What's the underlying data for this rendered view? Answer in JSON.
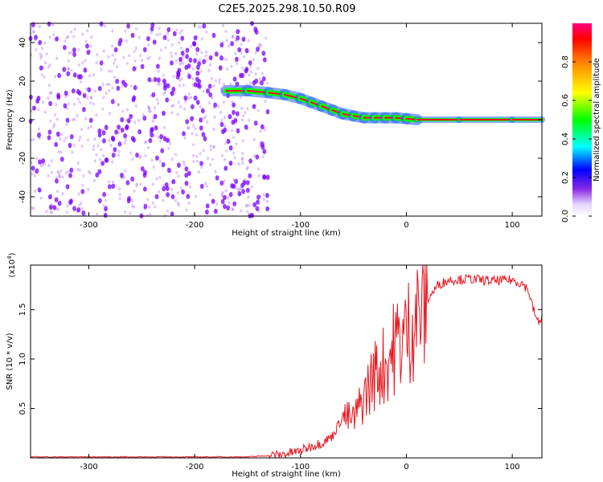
{
  "title": "C2E5.2025.298.10.50.R09",
  "colors": {
    "scatter": "#7a00ff",
    "ridge_band": "#00ff00",
    "ridge_core": "#ff0033",
    "snr_line": "#e8141c"
  },
  "chart_data": [
    {
      "type": "scatter",
      "name": "spectrogram",
      "xlabel": "Height of straight line (km)",
      "ylabel": "Frequency (Hz)",
      "xlim": [
        -355,
        128
      ],
      "ylim": [
        -50,
        50
      ],
      "xticks": [
        "-300",
        "-200",
        "-100",
        "0",
        "100"
      ],
      "yticks": [
        "-40",
        "-20",
        "0",
        "20",
        "40"
      ],
      "colorbar": {
        "label": "Normalized spectral amplitude",
        "ticks": [
          "0.0",
          "0.2",
          "0.4",
          "0.6",
          "0.8"
        ],
        "range": [
          0,
          1
        ]
      },
      "ridge": {
        "x": [
          -170,
          -150,
          -130,
          -115,
          -100,
          -90,
          -80,
          -70,
          -60,
          -50,
          -40,
          -30,
          -20,
          -10,
          0,
          10,
          50,
          100,
          128
        ],
        "y": [
          15,
          15,
          14,
          13,
          11,
          9,
          7,
          5,
          3,
          2,
          1,
          1,
          1,
          1,
          0.5,
          0,
          0,
          0,
          0
        ]
      },
      "noise_region_x": [
        -355,
        -130
      ],
      "grid": false
    },
    {
      "type": "line",
      "name": "snr",
      "xlabel": "Height of straight line (km)",
      "ylabel": "SNR (10 * v/v)",
      "scale_label": "(x10",
      "scale_exp": "4",
      "xlim": [
        -355,
        128
      ],
      "ylim": [
        0,
        1.95
      ],
      "xticks": [
        "-300",
        "-200",
        "-100",
        "0",
        "100"
      ],
      "yticks": [
        "0.5",
        "1.0",
        "1.5"
      ],
      "x": [
        -355,
        -150,
        -120,
        -100,
        -90,
        -80,
        -70,
        -60,
        -50,
        -40,
        -30,
        -20,
        -10,
        0,
        10,
        20,
        30,
        40,
        60,
        80,
        100,
        110,
        115,
        120,
        125,
        128
      ],
      "y": [
        0.01,
        0.01,
        0.03,
        0.07,
        0.12,
        0.15,
        0.22,
        0.42,
        0.38,
        0.62,
        0.85,
        0.95,
        1.15,
        1.25,
        1.45,
        1.6,
        1.75,
        1.8,
        1.81,
        1.79,
        1.8,
        1.76,
        1.7,
        1.5,
        1.35,
        1.45
      ],
      "grid": false
    }
  ]
}
